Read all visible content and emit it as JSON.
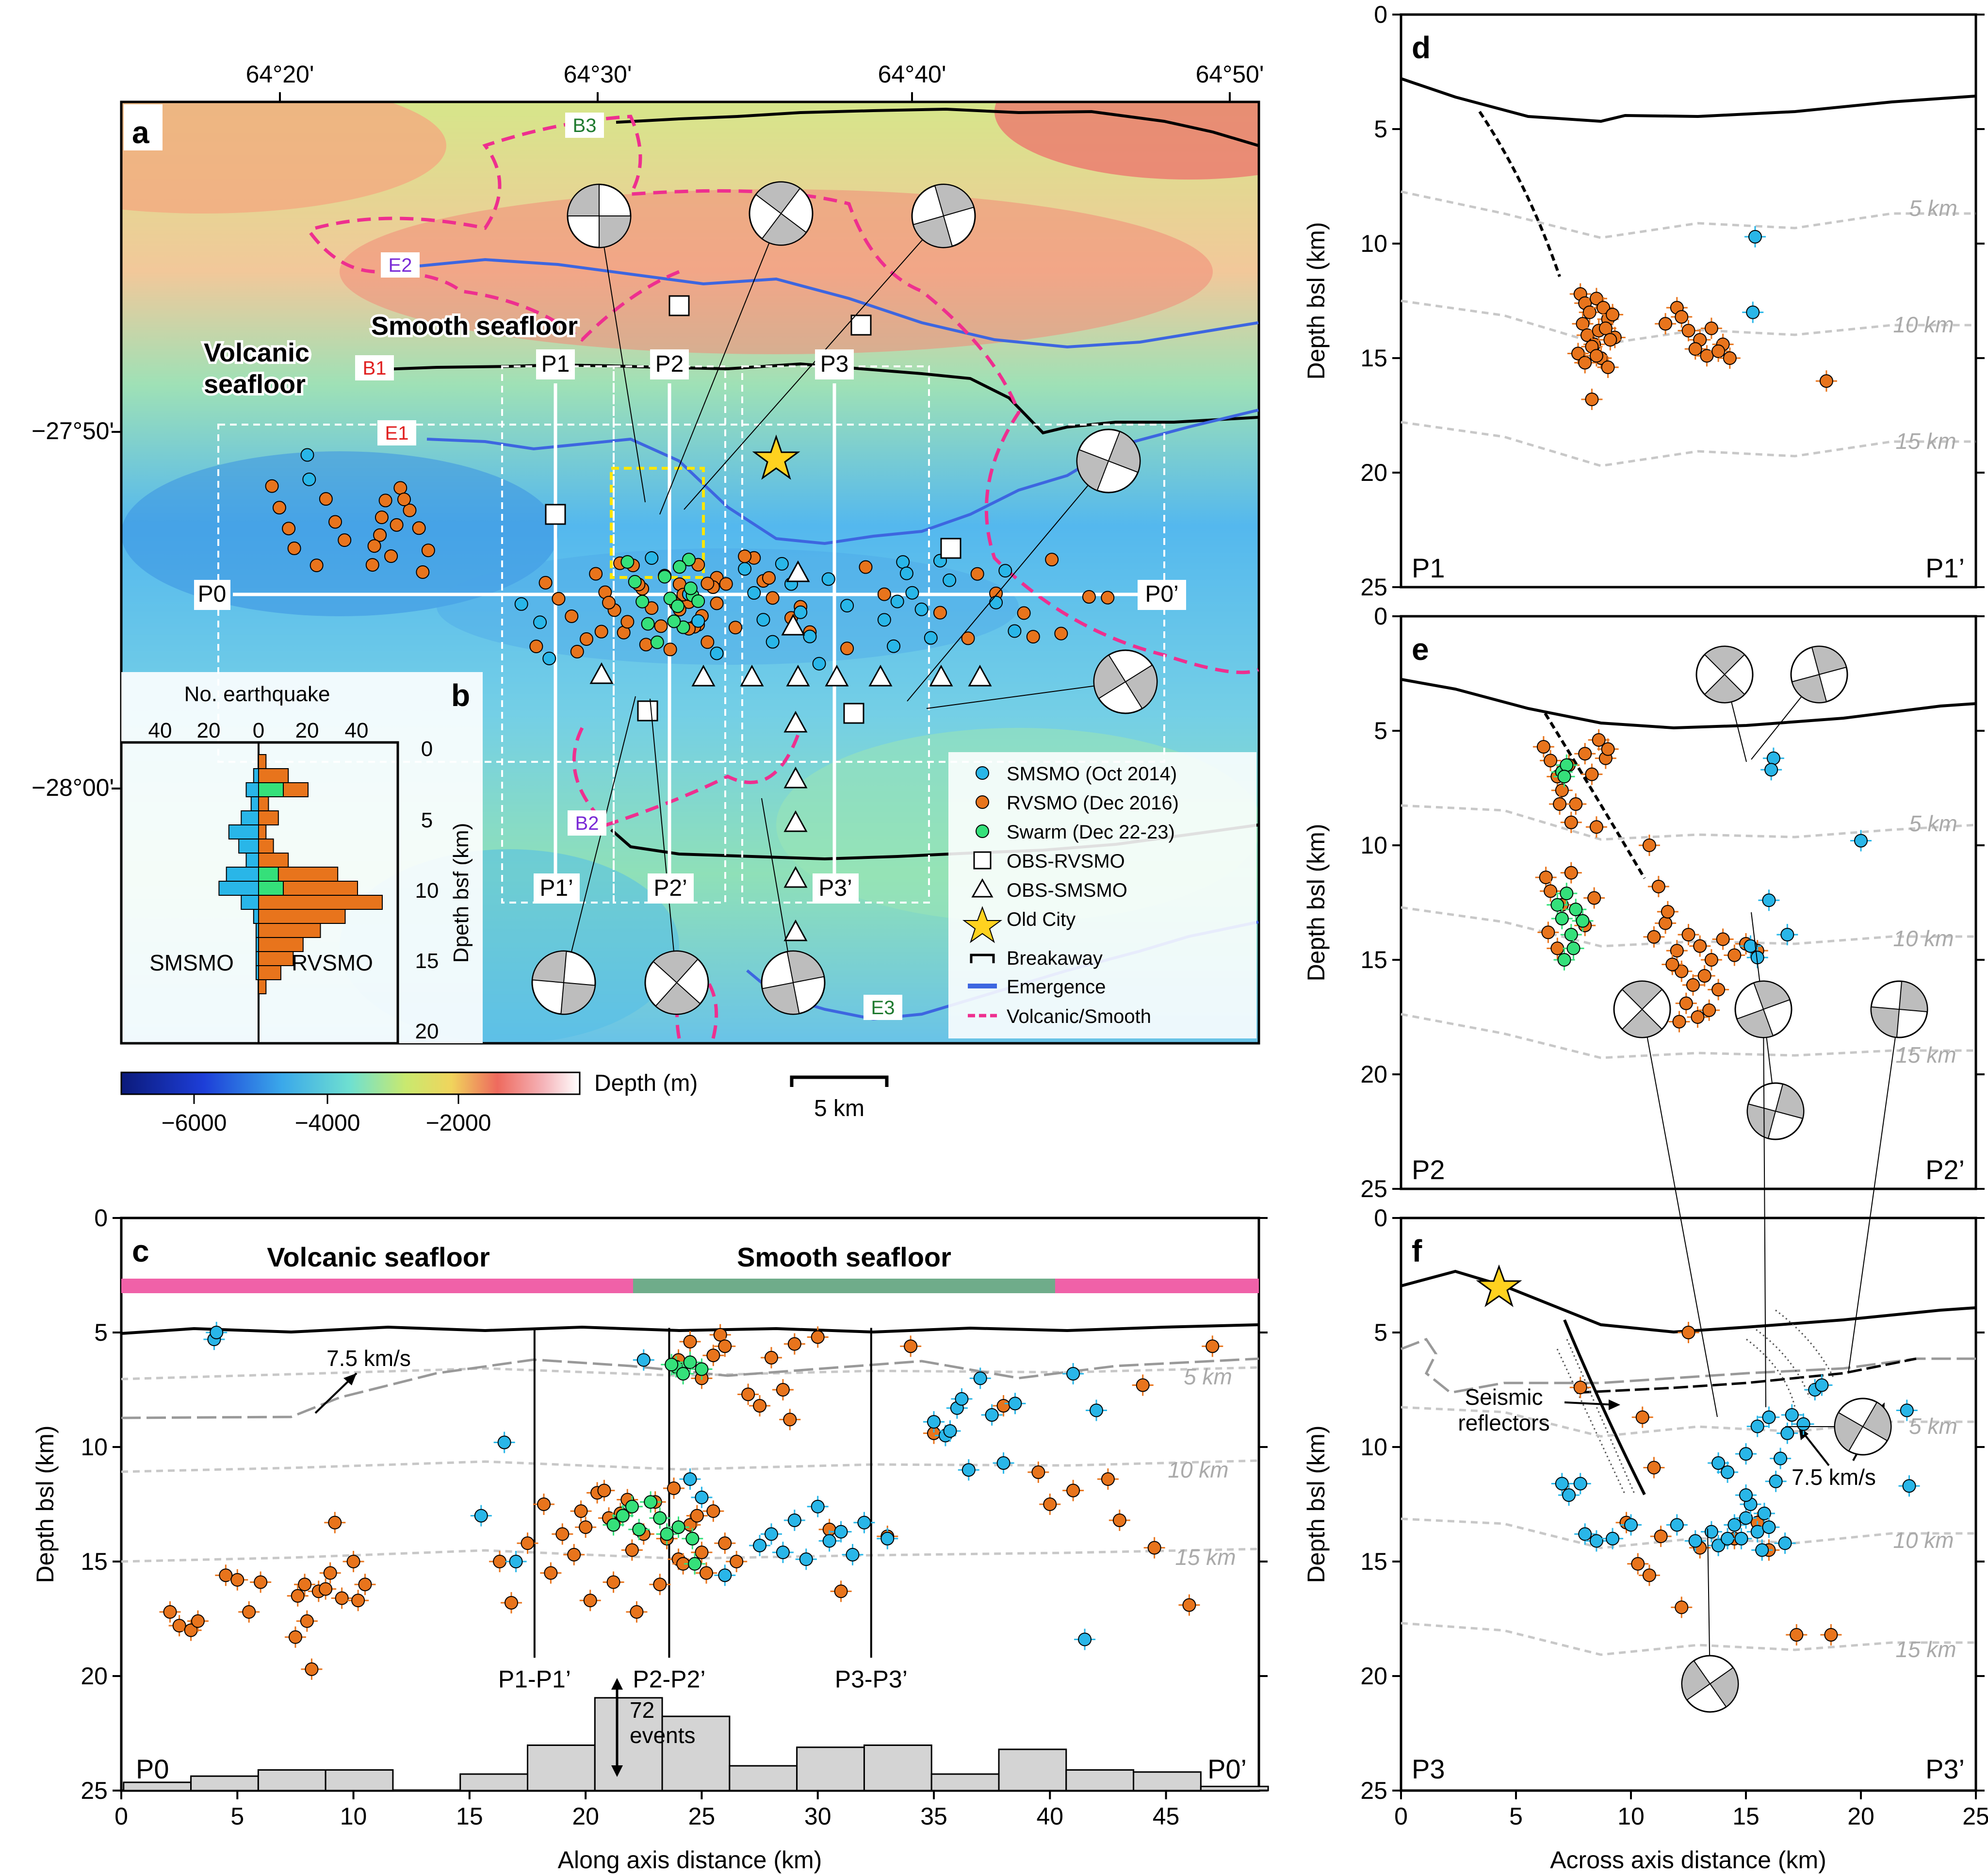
{
  "chart_data": [
    {
      "panel": "a",
      "type": "map",
      "x_ticks": [
        "64°20'",
        "64°30'",
        "64°40'",
        "64°50'"
      ],
      "y_ticks": [
        "−27°50'",
        "−28°00'"
      ],
      "region_labels": {
        "smooth": "Smooth seafloor",
        "volcanic_1": "Volcanic",
        "volcanic_2": "seafloor"
      },
      "fault_labels": {
        "B1": "B1",
        "B2": "B2",
        "B3": "B3",
        "E1": "E1",
        "E2": "E2",
        "E3": "E3"
      },
      "profile_labels": {
        "P0": "P0",
        "P0p": "P0’",
        "P1": "P1",
        "P1p": "P1’",
        "P2": "P2",
        "P2p": "P2’",
        "P3": "P3",
        "P3p": "P3’"
      },
      "legend": [
        {
          "label": "SMSMO (Oct 2014)",
          "color": "#29b6e8",
          "marker": "circle"
        },
        {
          "label": "RVSMO (Dec 2016)",
          "color": "#e8741c",
          "marker": "circle"
        },
        {
          "label": "Swarm (Dec 22-23)",
          "color": "#35e07a",
          "marker": "circle"
        },
        {
          "label": "OBS-RVSMO",
          "color": "#ffffff",
          "marker": "square"
        },
        {
          "label": "OBS-SMSMO",
          "color": "#ffffff",
          "marker": "triangle"
        },
        {
          "label": "Old City",
          "color": "#ffd21f",
          "marker": "star"
        },
        {
          "label": "Breakaway",
          "color": "#000000",
          "marker": "tick-line"
        },
        {
          "label": "Emergence",
          "color": "#3d66e0",
          "marker": "dot-line"
        },
        {
          "label": "Volcanic/Smooth",
          "color": "#ee2f8f",
          "marker": "dashed-line"
        }
      ],
      "colorbar": {
        "label": "Depth (m)",
        "ticks": [
          "−6000",
          "−4000",
          "−2000"
        ]
      },
      "scalebar": "5 km"
    },
    {
      "panel": "b",
      "type": "bar",
      "title": "No. earthquake",
      "ylabel": "Dpeth bsf (km)",
      "x_ticks": [
        "40",
        "20",
        "0",
        "20",
        "40"
      ],
      "y_ticks": [
        "0",
        "5",
        "10",
        "15",
        "20"
      ],
      "bin_depths": [
        0,
        1,
        2,
        3,
        4,
        5,
        6,
        7,
        8,
        9,
        10,
        11,
        12,
        13,
        14,
        15,
        16
      ],
      "series": [
        {
          "name": "SMSMO",
          "color": "#29b6e8",
          "values": [
            0,
            2,
            5,
            3,
            7,
            12,
            8,
            5,
            13,
            16,
            7,
            2,
            1,
            1,
            1,
            1,
            0
          ]
        },
        {
          "name": "RVSMO",
          "color": "#e8741c",
          "values": [
            3,
            12,
            20,
            4,
            8,
            3,
            6,
            12,
            32,
            40,
            50,
            35,
            25,
            18,
            14,
            9,
            3
          ]
        },
        {
          "name": "Swarm",
          "color": "#35e07a",
          "values": [
            0,
            0,
            10,
            0,
            0,
            0,
            0,
            0,
            8,
            10,
            0,
            0,
            0,
            0,
            0,
            0,
            0
          ]
        }
      ]
    },
    {
      "panel": "c",
      "type": "scatter",
      "xlabel": "Along axis distance (km)",
      "ylabel": "Depth bsl (km)",
      "xlim": [
        0,
        49
      ],
      "ylim": [
        25,
        0
      ],
      "x_ticks": [
        "0",
        "5",
        "10",
        "15",
        "20",
        "25",
        "30",
        "35",
        "40",
        "45"
      ],
      "y_ticks": [
        "0",
        "5",
        "10",
        "15",
        "20",
        "25"
      ],
      "seafloor_bands": {
        "volcanic": "Volcanic seafloor",
        "smooth": "Smooth seafloor"
      },
      "contour_labels": [
        "5 km",
        "10 km",
        "15 km"
      ],
      "annotations": {
        "velocity": "7.5 km/s",
        "count_num": "72",
        "count_word": "events"
      },
      "section_labels": [
        "P1-P1’",
        "P2-P2’",
        "P3-P3’"
      ],
      "corner_left": "P0",
      "corner_right": "P0’",
      "section_x": [
        17.8,
        23.6,
        32.3
      ],
      "hist_values": [
        0.4,
        0.7,
        1.0,
        1.0,
        0,
        0.8,
        2.2,
        4.5,
        3.6,
        1.2,
        2.1,
        2.2,
        0.8,
        2.0,
        1.0,
        0.9,
        0.2
      ],
      "series": [
        {
          "name": "RVSMO (Dec 2016)",
          "color": "#e8741c",
          "x": [
            2.1,
            2.5,
            3.0,
            3.3,
            4.5,
            5.0,
            5.5,
            6.0,
            7.5,
            8.2,
            8.0,
            7.9,
            8.5,
            9.0,
            9.5,
            10.0,
            10.5,
            10.2,
            9.2,
            8.8,
            7.6,
            16.3,
            16.8,
            17.5,
            18.2,
            19.0,
            19.5,
            20.0,
            20.5,
            21.0,
            21.5,
            22.0,
            22.5,
            23.0,
            23.5,
            24.0,
            24.5,
            25.0,
            25.5,
            26.0,
            20.2,
            21.2,
            22.2,
            23.2,
            24.2,
            25.2,
            19.8,
            20.8,
            21.8,
            23.8,
            24.8,
            18.5,
            26.5,
            25.8,
            24.0,
            24.5,
            25.0,
            25.5,
            26.0,
            27.0,
            28.0,
            28.5,
            29.0,
            30.0,
            27.5,
            28.8,
            30.5,
            31.0,
            33.0,
            34.0,
            35.0,
            38.0,
            39.5,
            40.0,
            41.0,
            42.5,
            43.0,
            44.0,
            46.0,
            47.0,
            44.5
          ],
          "y": [
            17.2,
            17.8,
            18.0,
            17.6,
            15.6,
            15.8,
            17.2,
            15.9,
            18.3,
            19.7,
            17.6,
            16.0,
            16.3,
            15.5,
            16.6,
            15.0,
            16.0,
            16.7,
            13.3,
            16.2,
            16.5,
            15.0,
            16.8,
            14.2,
            12.5,
            13.8,
            14.7,
            13.5,
            12.0,
            13.1,
            12.9,
            14.5,
            13.8,
            12.4,
            14.0,
            14.9,
            13.4,
            14.6,
            12.8,
            14.2,
            16.7,
            15.9,
            17.2,
            16.0,
            15.1,
            15.5,
            12.8,
            11.9,
            12.3,
            11.8,
            13.0,
            15.5,
            15.0,
            5.1,
            6.2,
            5.4,
            7.0,
            6.0,
            5.6,
            7.7,
            6.1,
            7.5,
            5.5,
            5.2,
            8.2,
            8.8,
            13.6,
            16.3,
            13.9,
            5.6,
            9.4,
            8.2,
            11.1,
            12.5,
            11.9,
            11.4,
            13.2,
            7.3,
            16.9,
            5.6,
            14.4
          ]
        },
        {
          "name": "SMSMO (Oct 2014)",
          "color": "#29b6e8",
          "x": [
            4.0,
            4.1,
            15.5,
            16.5,
            17.0,
            22.5,
            24.5,
            25.0,
            26.0,
            27.5,
            28.0,
            28.5,
            29.0,
            29.5,
            30.0,
            30.5,
            31.0,
            31.5,
            32.0,
            33.0,
            35.0,
            35.5,
            36.0,
            36.5,
            37.0,
            37.5,
            38.0,
            38.5,
            41.0,
            42.0,
            41.5,
            36.2,
            35.7
          ],
          "y": [
            5.3,
            5.0,
            13.0,
            9.8,
            15.0,
            6.2,
            11.4,
            12.2,
            15.6,
            14.3,
            13.8,
            14.6,
            13.2,
            14.9,
            12.6,
            14.1,
            13.7,
            14.7,
            13.3,
            14.0,
            8.9,
            9.5,
            8.3,
            11.0,
            7.0,
            8.6,
            10.7,
            8.1,
            6.8,
            8.4,
            18.4,
            7.9,
            9.3
          ]
        },
        {
          "name": "Swarm (Dec 22-23)",
          "color": "#35e07a",
          "x": [
            21.2,
            21.6,
            22.0,
            22.3,
            22.8,
            23.2,
            23.5,
            23.9,
            24.2,
            24.5,
            24.7,
            25.0,
            23.7,
            24.0,
            24.6
          ],
          "y": [
            13.4,
            13.0,
            12.6,
            13.6,
            12.4,
            13.1,
            13.8,
            6.5,
            6.8,
            6.3,
            15.1,
            6.6,
            6.4,
            13.5,
            14.0
          ]
        }
      ]
    },
    {
      "panel": "d",
      "type": "scatter",
      "ylabel": "Depth bsl (km)",
      "xlim": [
        0,
        25
      ],
      "ylim": [
        25,
        0
      ],
      "y_ticks": [
        "0",
        "5",
        "10",
        "15",
        "20",
        "25"
      ],
      "contour_labels": [
        "5 km",
        "10 km",
        "15 km"
      ],
      "corner_left": "P1",
      "corner_right": "P1’",
      "series": [
        {
          "name": "RVSMO (Dec 2016)",
          "color": "#e8741c",
          "x": [
            7.8,
            8.0,
            8.2,
            8.5,
            8.8,
            9.0,
            9.2,
            7.9,
            8.1,
            8.4,
            8.6,
            8.9,
            9.3,
            7.7,
            8.3,
            8.7,
            9.1,
            8.0,
            8.5,
            9.0,
            11.5,
            12.0,
            12.5,
            13.0,
            13.5,
            14.0,
            12.2,
            12.8,
            13.3,
            13.8,
            14.3,
            18.5,
            8.3
          ],
          "y": [
            12.2,
            12.6,
            13.0,
            12.4,
            12.8,
            13.3,
            13.1,
            13.5,
            14.0,
            14.4,
            13.8,
            13.7,
            14.1,
            14.8,
            14.5,
            15.0,
            14.2,
            15.2,
            14.9,
            15.4,
            13.5,
            12.8,
            13.8,
            14.2,
            13.7,
            14.4,
            13.2,
            14.6,
            14.9,
            14.7,
            15.0,
            16.0,
            16.8
          ]
        },
        {
          "name": "SMSMO (Oct 2014)",
          "color": "#29b6e8",
          "x": [
            15.4,
            15.3
          ],
          "y": [
            9.7,
            13.0
          ]
        }
      ]
    },
    {
      "panel": "e",
      "type": "scatter",
      "ylabel": "Depth bsl (km)",
      "xlim": [
        0,
        25
      ],
      "ylim": [
        25,
        0
      ],
      "y_ticks": [
        "0",
        "5",
        "10",
        "15",
        "20",
        "25"
      ],
      "contour_labels": [
        "5 km",
        "10 km",
        "15 km"
      ],
      "corner_left": "P2",
      "corner_right": "P2’",
      "series": [
        {
          "name": "RVSMO (Dec 2016)",
          "color": "#e8741c",
          "x": [
            6.2,
            6.5,
            6.8,
            7.0,
            7.3,
            7.6,
            8.0,
            8.3,
            8.6,
            8.9,
            9.0,
            8.5,
            7.4,
            6.9,
            6.3,
            6.5,
            7.0,
            7.4,
            8.0,
            8.4,
            6.4,
            6.8,
            11.0,
            11.5,
            12.0,
            12.5,
            13.0,
            13.5,
            14.0,
            14.5,
            15.0,
            15.5,
            12.2,
            12.7,
            13.2,
            13.8,
            12.4,
            12.9,
            13.4,
            11.8,
            12.1,
            11.2,
            10.8,
            11.6
          ],
          "y": [
            5.7,
            6.3,
            7.0,
            7.6,
            6.5,
            8.2,
            6.0,
            6.9,
            5.4,
            6.2,
            5.8,
            9.2,
            9.0,
            8.2,
            11.4,
            12.0,
            12.6,
            11.2,
            13.5,
            12.3,
            13.8,
            14.5,
            14.0,
            13.4,
            14.6,
            13.9,
            14.4,
            15.0,
            14.1,
            14.8,
            14.3,
            14.6,
            15.5,
            16.1,
            15.7,
            16.3,
            16.9,
            17.5,
            17.2,
            15.2,
            17.7,
            11.8,
            10.0,
            12.9
          ]
        },
        {
          "name": "SMSMO (Oct 2014)",
          "color": "#29b6e8",
          "x": [
            16.2,
            16.1,
            20.0,
            16.0,
            16.8,
            15.2,
            15.5
          ],
          "y": [
            6.2,
            6.7,
            9.8,
            12.4,
            13.9,
            14.4,
            14.9
          ]
        },
        {
          "name": "Swarm (Dec 22-23)",
          "color": "#35e07a",
          "x": [
            7.0,
            7.2,
            7.1,
            6.8,
            7.2,
            7.6,
            7.9,
            7.4,
            7.0,
            7.5,
            7.1
          ],
          "y": [
            6.8,
            6.5,
            7.0,
            12.6,
            12.1,
            12.8,
            13.3,
            13.9,
            13.2,
            14.5,
            15.0
          ]
        }
      ]
    },
    {
      "panel": "f",
      "type": "scatter",
      "xlabel": "Across axis distance (km)",
      "ylabel": "Depth bsl (km)",
      "xlim": [
        0,
        25
      ],
      "ylim": [
        25,
        0
      ],
      "x_ticks": [
        "0",
        "5",
        "10",
        "15",
        "20",
        "25"
      ],
      "y_ticks": [
        "0",
        "5",
        "10",
        "15",
        "20",
        "25"
      ],
      "contour_labels": [
        "5 km",
        "10 km",
        "15 km"
      ],
      "annotations": {
        "reflectors_1": "Seismic",
        "reflectors_2": "reflectors",
        "velocity": "7.5 km/s"
      },
      "corner_left": "P3",
      "corner_right": "P3’",
      "series": [
        {
          "name": "RVSMO (Dec 2016)",
          "color": "#e8741c",
          "x": [
            7.8,
            10.5,
            11.0,
            12.5,
            10.3,
            10.8,
            9.8,
            11.3,
            12.2,
            13.0,
            14.5,
            15.5,
            16.0,
            17.2,
            18.7
          ],
          "y": [
            7.4,
            8.7,
            10.9,
            5.0,
            15.1,
            15.6,
            13.3,
            13.9,
            17.0,
            14.4,
            14.0,
            13.3,
            14.5,
            18.2,
            18.2
          ]
        },
        {
          "name": "SMSMO (Oct 2014)",
          "color": "#29b6e8",
          "x": [
            7.0,
            7.3,
            7.8,
            8.0,
            8.5,
            9.2,
            10.0,
            12.0,
            12.8,
            13.5,
            13.8,
            14.2,
            14.5,
            14.8,
            15.0,
            15.2,
            15.5,
            15.8,
            16.0,
            16.3,
            16.5,
            16.8,
            17.0,
            17.5,
            18.0,
            18.3,
            13.8,
            14.2,
            15.0,
            15.5,
            16.0,
            19.8,
            22.0,
            22.1,
            15.0,
            15.7,
            16.7
          ],
          "y": [
            11.6,
            12.1,
            11.6,
            13.8,
            14.1,
            14.0,
            13.4,
            13.4,
            14.1,
            13.7,
            14.3,
            14.0,
            13.4,
            14.0,
            13.1,
            12.5,
            13.7,
            12.9,
            13.5,
            11.5,
            10.5,
            9.4,
            8.6,
            9.0,
            7.5,
            7.3,
            10.7,
            11.1,
            10.3,
            9.1,
            8.7,
            9.2,
            8.4,
            11.7,
            12.1,
            14.5,
            14.2
          ]
        }
      ]
    }
  ],
  "beachballs": {
    "a": [
      [
        1235,
        445
      ],
      [
        1610,
        440
      ],
      [
        1945,
        445
      ],
      [
        2285,
        950
      ],
      [
        2320,
        1405
      ],
      [
        1162,
        2025
      ],
      [
        1395,
        2025
      ],
      [
        1635,
        2025
      ]
    ],
    "e": [
      [
        3555,
        1390
      ],
      [
        3750,
        1390
      ],
      [
        3660,
        2290
      ]
    ],
    "f": [
      [
        3385,
        2080
      ],
      [
        3635,
        2080
      ],
      [
        3915,
        2080
      ],
      [
        3840,
        2940
      ],
      [
        3525,
        3470
      ]
    ]
  },
  "obs_squares": [
    [
      1145,
      1060
    ],
    [
      1400,
      630
    ],
    [
      1775,
      670
    ],
    [
      1960,
      1130
    ],
    [
      1335,
      1465
    ],
    [
      1760,
      1470
    ]
  ],
  "obs_triangles": [
    [
      1240,
      1390
    ],
    [
      1450,
      1395
    ],
    [
      1645,
      1395
    ],
    [
      1645,
      1180
    ],
    [
      1635,
      1290
    ],
    [
      1550,
      1395
    ],
    [
      1725,
      1395
    ],
    [
      1815,
      1395
    ],
    [
      1940,
      1395
    ],
    [
      2020,
      1395
    ],
    [
      1640,
      1490
    ],
    [
      1640,
      1605
    ],
    [
      1640,
      1695
    ],
    [
      1640,
      1810
    ],
    [
      1640,
      1920
    ]
  ]
}
